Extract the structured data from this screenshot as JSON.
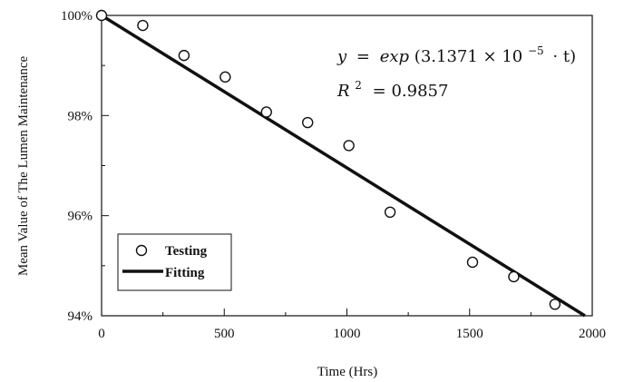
{
  "chart_data": {
    "type": "scatter",
    "title": "",
    "xlabel": "Time (Hrs)",
    "ylabel": "Mean Value of The Lumen Maintenance",
    "xlim": [
      0,
      2000
    ],
    "ylim": [
      94,
      100
    ],
    "x_ticks": [
      0,
      500,
      1000,
      1500,
      2000
    ],
    "x_tick_labels": [
      "0",
      "500",
      "1000",
      "1500",
      "2000"
    ],
    "y_ticks": [
      94,
      96,
      98,
      100
    ],
    "y_tick_labels": [
      "94%",
      "96%",
      "98%",
      "100%"
    ],
    "grid": false,
    "legend_position": "bottom-left",
    "series": [
      {
        "name": "Testing",
        "kind": "markers",
        "marker": "open-circle",
        "x": [
          0,
          168,
          336,
          504,
          672,
          840,
          1008,
          1176,
          1512,
          1680,
          1848
        ],
        "y": [
          100,
          99.8,
          99.2,
          98.77,
          98.07,
          97.86,
          97.4,
          96.07,
          95.07,
          94.78,
          94.23
        ]
      },
      {
        "name": "Fitting",
        "kind": "line",
        "color": "#111111",
        "x": [
          0,
          1970
        ],
        "y": [
          100,
          94
        ]
      }
    ],
    "annotations": {
      "equation_y": "y",
      "equation_equals": "=",
      "equation_exp": "exp",
      "equation_open": "(3.1371 × 10",
      "equation_exponent": "−5",
      "equation_close": "· t)",
      "r2_R": "R",
      "r2_sup": "2",
      "r2_value": "= 0.9857"
    }
  }
}
